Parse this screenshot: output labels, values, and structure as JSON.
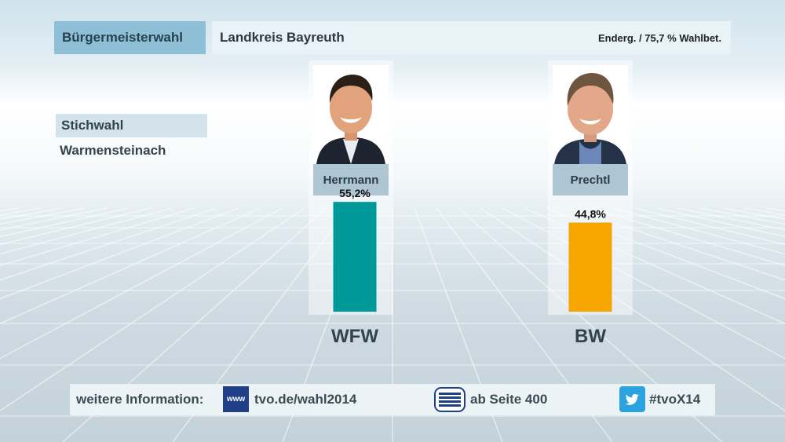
{
  "header": {
    "title": "Bürgermeisterwahl",
    "region": "Landkreis Bayreuth",
    "status": "Enderg. / 75,7 % Wahlbet."
  },
  "side": {
    "election_type": "Stichwahl",
    "place": "Warmensteinach"
  },
  "candidates": [
    {
      "name": "Herrmann",
      "party": "WFW"
    },
    {
      "name": "Prechtl",
      "party": "BW"
    }
  ],
  "chart_data": {
    "type": "bar",
    "categories": [
      "WFW",
      "BW"
    ],
    "values": [
      55.2,
      44.8
    ],
    "value_labels": [
      "55,2%",
      "44,8%"
    ],
    "colors": [
      "#00999a",
      "#f7a600"
    ],
    "ylim": [
      0,
      60
    ],
    "grid": false,
    "legend": "none"
  },
  "footer": {
    "info_label": "weitere Information:",
    "web_icon_text": "www",
    "web_url": "tvo.de/wahl2014",
    "teletext_text": "ab Seite 400",
    "hashtag": "#tvoX14",
    "icons": [
      "www-icon",
      "teletext-icon",
      "twitter-icon"
    ]
  }
}
